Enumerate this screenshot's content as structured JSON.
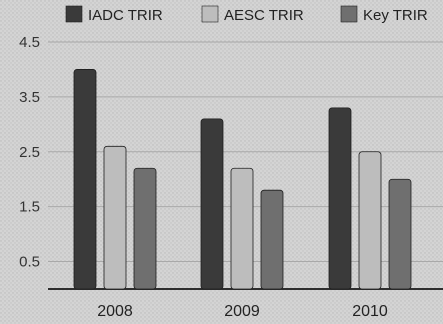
{
  "chart_data": {
    "type": "bar",
    "categories": [
      "2008",
      "2009",
      "2010"
    ],
    "series": [
      {
        "name": "IADC TRIR",
        "values": [
          4.0,
          3.1,
          3.3
        ],
        "color": "#3a3a3a"
      },
      {
        "name": "AESC TRIR",
        "values": [
          2.6,
          2.2,
          2.5
        ],
        "color": "#bdbdbd"
      },
      {
        "name": "Key TRIR",
        "values": [
          2.2,
          1.8,
          2.0
        ],
        "color": "#6f6f6f"
      }
    ],
    "ylim": [
      0,
      4.5
    ],
    "yticks": [
      "0.5",
      "1.5",
      "2.5",
      "3.5",
      "4.5"
    ],
    "grid": true,
    "legend_position": "top"
  }
}
